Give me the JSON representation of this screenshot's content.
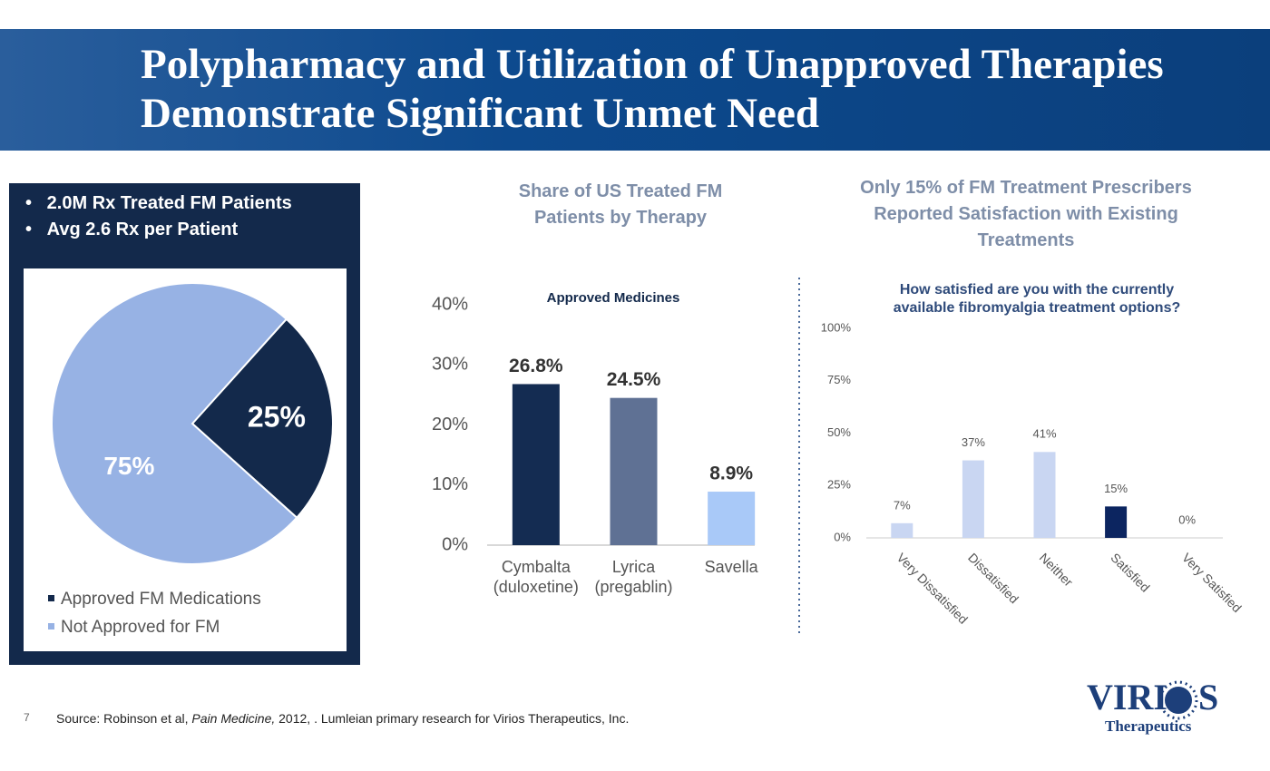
{
  "header": {
    "title": "Polypharmacy and Utilization of Unapproved Therapies Demonstrate Significant Unmet Need"
  },
  "bullets": [
    "2.0M Rx Treated FM Patients",
    "Avg 2.6 Rx per Patient"
  ],
  "chart_data": [
    {
      "type": "pie",
      "categories": [
        "Approved FM Medications",
        "Not Approved for FM"
      ],
      "values": [
        25,
        75
      ],
      "value_labels": [
        "25%",
        "75%"
      ],
      "colors": [
        "#13294b",
        "#97b2e4"
      ],
      "legend": "bottom-left"
    },
    {
      "type": "bar",
      "title": "Share of US Treated FM Patients by Therapy",
      "annotation": "Approved Medicines",
      "categories": [
        "Cymbalta\n(duloxetine)",
        "Lyrica\n(pregablin)",
        "Savella"
      ],
      "values": [
        26.8,
        24.5,
        8.9
      ],
      "value_labels": [
        "26.8%",
        "24.5%",
        "8.9%"
      ],
      "colors": [
        "#142c52",
        "#5f7194",
        "#a9c9f8"
      ],
      "ylim": [
        0,
        40
      ],
      "yticks": [
        {
          "value": 0,
          "label": "0%"
        },
        {
          "value": 10,
          "label": "10%"
        },
        {
          "value": 20,
          "label": "20%"
        },
        {
          "value": 30,
          "label": "30%"
        },
        {
          "value": 40,
          "label": "40%"
        }
      ],
      "grid": false
    },
    {
      "type": "bar",
      "title": "Only 15% of FM Treatment Prescribers Reported Satisfaction with Existing Treatments",
      "subtitle": "How satisfied are you with the currently available fibromyalgia treatment options?",
      "categories": [
        "Very Dissatisfied",
        "Dissatisfied",
        "Neither",
        "Satisfied",
        "Very Satisfied"
      ],
      "values": [
        7,
        37,
        41,
        15,
        0
      ],
      "value_labels": [
        "7%",
        "37%",
        "41%",
        "15%",
        "0%"
      ],
      "colors": [
        "#c9d6f2",
        "#c9d6f2",
        "#c9d6f2",
        "#0c2560",
        "#c9d6f2"
      ],
      "ylim": [
        0,
        100
      ],
      "yticks": [
        {
          "value": 0,
          "label": "0%"
        },
        {
          "value": 25,
          "label": "25%"
        },
        {
          "value": 50,
          "label": "50%"
        },
        {
          "value": 75,
          "label": "75%"
        },
        {
          "value": 100,
          "label": "100%"
        }
      ],
      "grid": false
    }
  ],
  "footer": {
    "page_number": "7",
    "source": [
      "Source: Robinson et al, ",
      "Pain Medicine,",
      " 2012, . Lumleian primary research for Virios Therapeutics, Inc."
    ]
  },
  "logo": {
    "name": "VIRI",
    "name_end": "S",
    "subtitle": "Therapeutics"
  }
}
